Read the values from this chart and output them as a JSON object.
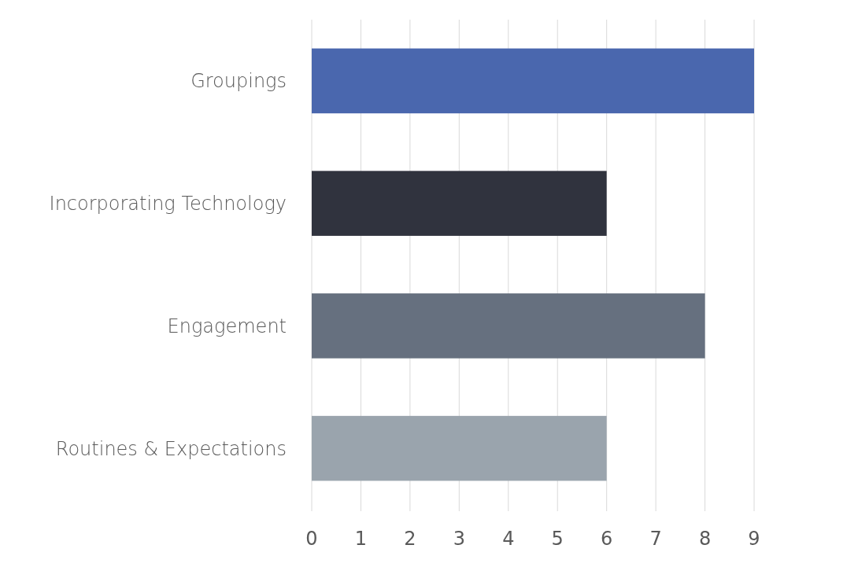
{
  "chart_data": {
    "type": "bar",
    "orientation": "horizontal",
    "categories": [
      "Groupings",
      "Incorporating Technology",
      "Engagement",
      "Routines & Expectations"
    ],
    "values": [
      9,
      6,
      8,
      6
    ],
    "colors": [
      "#4a67ae",
      "#30333e",
      "#66707f",
      "#9aa4ad"
    ],
    "xlim": [
      0,
      9
    ],
    "xticks": [
      0,
      1,
      2,
      3,
      4,
      5,
      6,
      7,
      8,
      9
    ],
    "grid": "x"
  }
}
